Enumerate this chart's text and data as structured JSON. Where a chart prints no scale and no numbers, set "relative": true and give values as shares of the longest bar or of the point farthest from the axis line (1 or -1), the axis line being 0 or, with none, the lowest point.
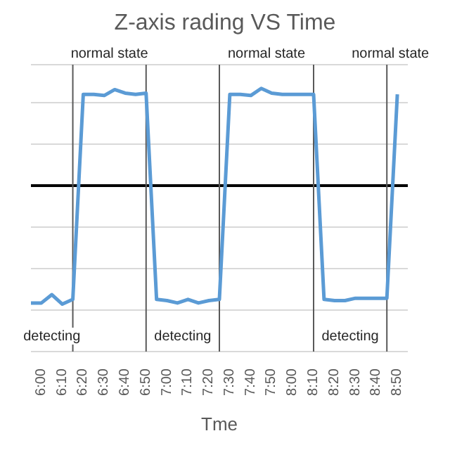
{
  "chart_data": {
    "type": "line",
    "title": "Z-axis rading VS Time",
    "xlabel": "Tme",
    "relative": true,
    "marker": "none",
    "grid": "y",
    "xlim": [
      5.9167,
      8.9167
    ],
    "xticks": [
      {
        "value": 6,
        "label": "6:00"
      },
      {
        "value": 6.1667,
        "label": "6:10"
      },
      {
        "value": 6.3333,
        "label": "6:20"
      },
      {
        "value": 6.5,
        "label": "6:30"
      },
      {
        "value": 6.6667,
        "label": "6:40"
      },
      {
        "value": 6.8333,
        "label": "6:50"
      },
      {
        "value": 7,
        "label": "7:00"
      },
      {
        "value": 7.1667,
        "label": "7:10"
      },
      {
        "value": 7.3333,
        "label": "7:20"
      },
      {
        "value": 7.5,
        "label": "7:30"
      },
      {
        "value": 7.6667,
        "label": "7:40"
      },
      {
        "value": 7.8333,
        "label": "7:50"
      },
      {
        "value": 8,
        "label": "8:00"
      },
      {
        "value": 8.1667,
        "label": "8:10"
      },
      {
        "value": 8.3333,
        "label": "8:20"
      },
      {
        "value": 8.5,
        "label": "8:30"
      },
      {
        "value": 8.6667,
        "label": "8:40"
      },
      {
        "value": 8.8333,
        "label": "8:50"
      }
    ],
    "x": [
      5.9167,
      6,
      6.0833,
      6.1667,
      6.25,
      6.3333,
      6.4167,
      6.5,
      6.5833,
      6.6667,
      6.75,
      6.8333,
      6.9167,
      7,
      7.0833,
      7.1667,
      7.25,
      7.3333,
      7.4167,
      7.5,
      7.5833,
      7.6667,
      7.75,
      7.8333,
      7.9167,
      8,
      8.0833,
      8.1667,
      8.25,
      8.3333,
      8.4167,
      8.5,
      8.5833,
      8.6667,
      8.75,
      8.8333
    ],
    "series": [
      {
        "color": "#5b9bd5",
        "values": [
          -0.99,
          -0.99,
          -0.92,
          -1,
          -0.96,
          0.77,
          0.77,
          0.76,
          0.81,
          0.78,
          0.77,
          0.78,
          -0.96,
          -0.97,
          -0.99,
          -0.96,
          -0.99,
          -0.97,
          -0.96,
          0.77,
          0.77,
          0.76,
          0.82,
          0.78,
          0.77,
          0.77,
          0.77,
          0.77,
          -0.96,
          -0.97,
          -0.97,
          -0.95,
          -0.95,
          -0.95,
          -0.95,
          0.77
        ]
      }
    ],
    "ref_lines": [
      {
        "axis": "y",
        "value": 0,
        "color": "#000000"
      },
      {
        "axis": "x",
        "value": 6.25,
        "color": "#595959"
      },
      {
        "axis": "x",
        "value": 6.8333,
        "color": "#595959"
      },
      {
        "axis": "x",
        "value": 7.4167,
        "color": "#595959"
      },
      {
        "axis": "x",
        "value": 8.1667,
        "color": "#595959"
      },
      {
        "axis": "x",
        "value": 8.75,
        "color": "#595959"
      }
    ],
    "annotations": [
      "detecting",
      "normal state",
      "detecting",
      "normal state",
      "detecting",
      "normal state"
    ]
  }
}
